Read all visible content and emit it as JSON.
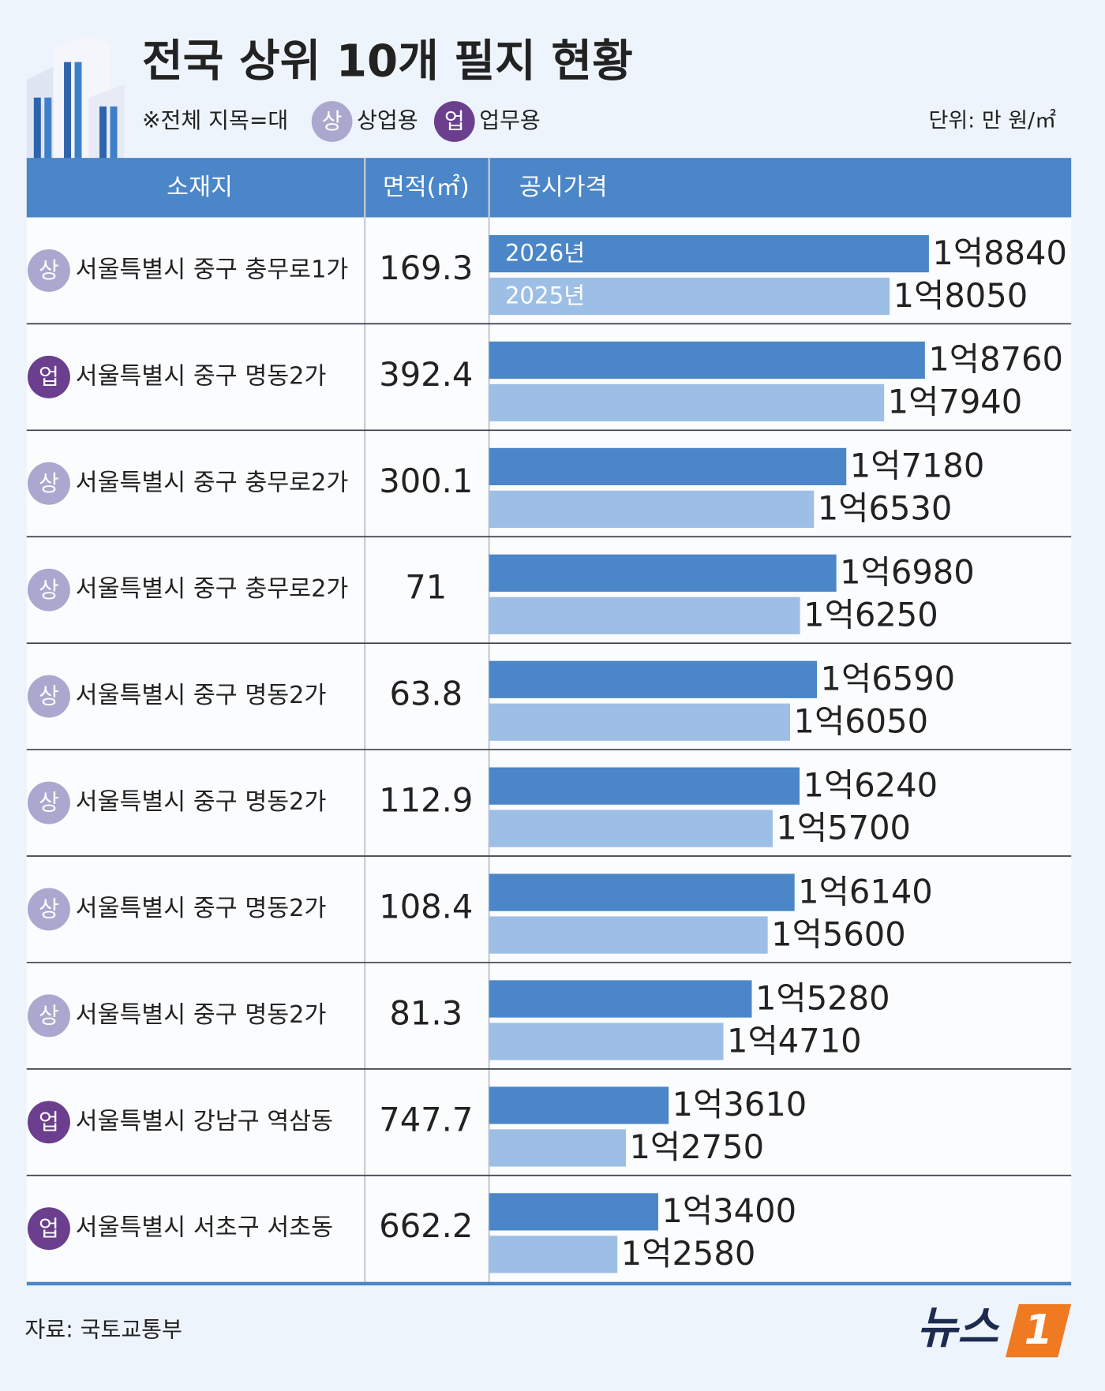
{
  "title": "전국 상위 10개 필지 현황",
  "note": "※전체 지목=대",
  "legend": [
    {
      "badge": "상",
      "label": "상업용",
      "color": "#aaa8cf"
    },
    {
      "badge": "업",
      "label": "업무용",
      "color": "#6b3f8e"
    }
  ],
  "unit": "단위: 만 원/㎡",
  "columns": [
    "소재지",
    "면적(㎡)",
    "공시가격"
  ],
  "rows": [
    {
      "badge": "상",
      "location": "서울특별시 중구 충무로1가",
      "area": 169.3
    },
    {
      "badge": "업",
      "location": "서울특별시 중구 명동2가",
      "area": 392.4
    },
    {
      "badge": "상",
      "location": "서울특별시 중구 충무로2가",
      "area": 300.1
    },
    {
      "badge": "상",
      "location": "서울특별시 중구 충무로2가",
      "area": 71
    },
    {
      "badge": "상",
      "location": "서울특별시 중구 명동2가",
      "area": 63.8
    },
    {
      "badge": "상",
      "location": "서울특별시 중구 명동2가",
      "area": 112.9
    },
    {
      "badge": "상",
      "location": "서울특별시 중구 명동2가",
      "area": 108.4
    },
    {
      "badge": "상",
      "location": "서울특별시 중구 명동2가",
      "area": 81.3
    },
    {
      "badge": "업",
      "location": "서울특별시 강남구 역삼동",
      "area": 747.7
    },
    {
      "badge": "업",
      "location": "서울특별시 서초구 서초동",
      "area": 662.2
    }
  ],
  "chart_data": {
    "type": "bar",
    "orientation": "horizontal",
    "xlim": [
      10000,
      21700
    ],
    "series": [
      {
        "name": "2026년",
        "color": "#4a86c8",
        "values": [
          18840,
          18760,
          17180,
          16980,
          16590,
          16240,
          16140,
          15280,
          13610,
          13400
        ],
        "value_labels": [
          "1억8840",
          "1억8760",
          "1억7180",
          "1억6980",
          "1억6590",
          "1억6240",
          "1억6140",
          "1억5280",
          "1억3610",
          "1억3400"
        ]
      },
      {
        "name": "2025년",
        "color": "#9dbfe6",
        "values": [
          18050,
          17940,
          16530,
          16250,
          16050,
          15700,
          15600,
          14710,
          12750,
          12580
        ],
        "value_labels": [
          "1억8050",
          "1억7940",
          "1억6530",
          "1억6250",
          "1억6050",
          "1억5700",
          "1억5600",
          "1억4710",
          "1억2750",
          "1억2580"
        ]
      }
    ]
  },
  "source": "자료: 국토교통부",
  "logo": [
    "뉴스",
    "1"
  ]
}
